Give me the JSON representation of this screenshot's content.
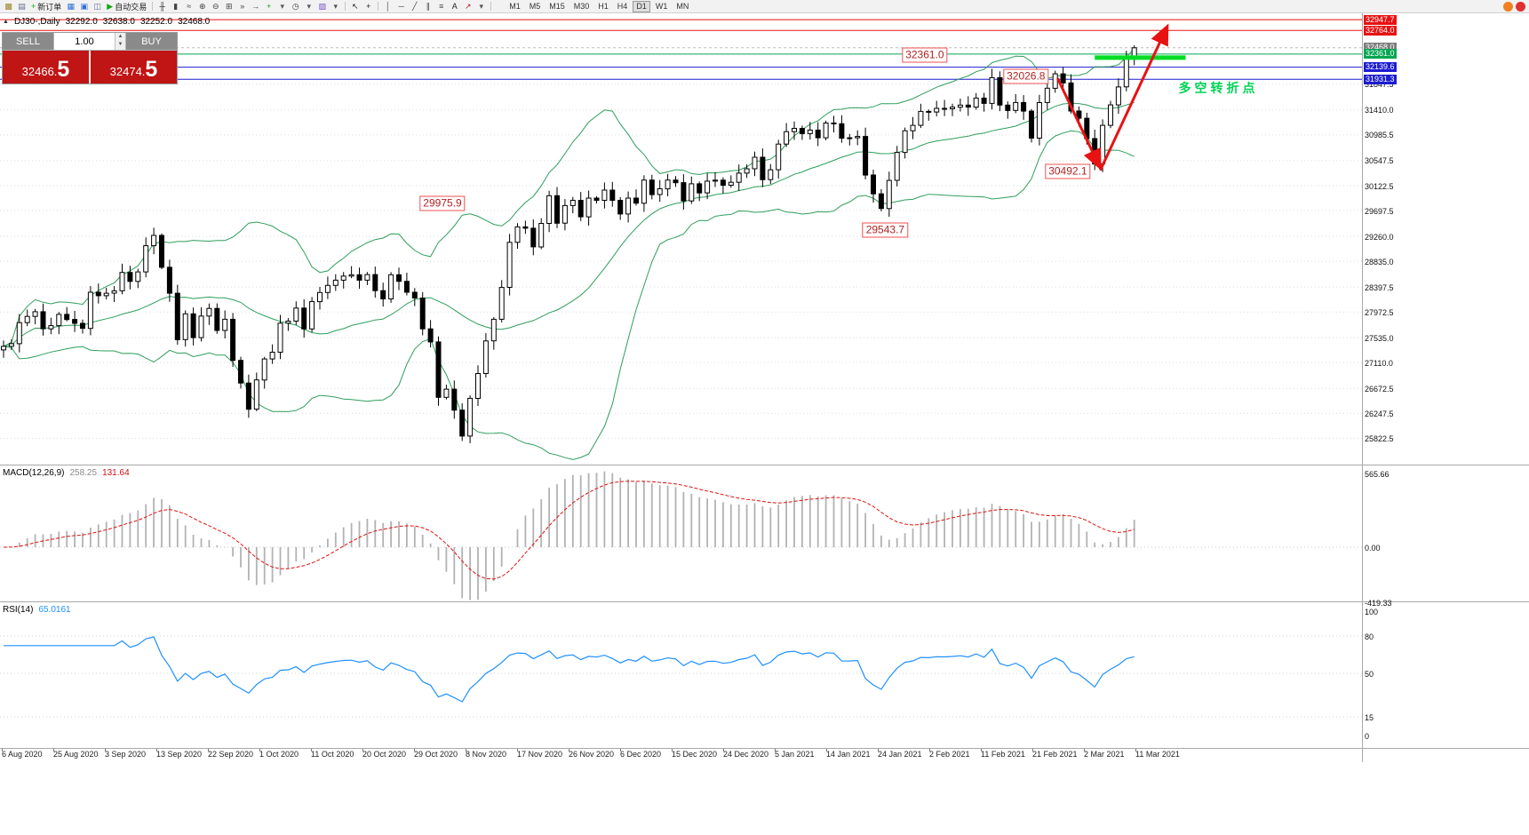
{
  "toolbar": {
    "new_order_label": "新订单",
    "autotrade_label": "自动交易",
    "timeframes": [
      "M1",
      "M5",
      "M15",
      "M30",
      "H1",
      "H4",
      "D1",
      "W1",
      "MN"
    ],
    "active_timeframe": "D1",
    "items": [
      {
        "t": "icon",
        "name": "new-chart-icon",
        "g": "▩",
        "c": "#a08428"
      },
      {
        "t": "icon",
        "name": "chart-profiles-icon",
        "g": "▤",
        "c": "#5f6f8f"
      },
      {
        "t": "btn",
        "name": "new-order-button",
        "g": "+",
        "gc": "#0faf0f",
        "label": "新订单"
      },
      {
        "t": "icon",
        "name": "market-watch-icon",
        "g": "▦",
        "c": "#2f6fd6"
      },
      {
        "t": "icon",
        "name": "data-window-icon",
        "g": "▣",
        "c": "#2f6fd6"
      },
      {
        "t": "icon",
        "name": "navigator-icon",
        "g": "◫",
        "c": "#5f6f8f"
      },
      {
        "t": "btn",
        "name": "autotrade-button",
        "g": "▶",
        "gc": "#12a912",
        "label": "自动交易"
      },
      {
        "t": "sep"
      },
      {
        "t": "icon",
        "name": "bars-mode-icon",
        "g": "╫",
        "c": "#444444"
      },
      {
        "t": "icon",
        "name": "candles-mode-icon",
        "g": "▮",
        "c": "#444444"
      },
      {
        "t": "icon",
        "name": "line-mode-icon",
        "g": "≈",
        "c": "#444444"
      },
      {
        "t": "icon",
        "name": "zoom-in-icon",
        "g": "⊕",
        "c": "#444444"
      },
      {
        "t": "icon",
        "name": "zoom-out-icon",
        "g": "⊖",
        "c": "#444444"
      },
      {
        "t": "icon",
        "name": "tile-windows-icon",
        "g": "⊞",
        "c": "#444444"
      },
      {
        "t": "icon",
        "name": "auto-scroll-icon",
        "g": "»",
        "c": "#444444"
      },
      {
        "t": "icon",
        "name": "chart-shift-icon",
        "g": "→",
        "c": "#444444"
      },
      {
        "t": "icon",
        "name": "add-indicator-icon",
        "g": "+",
        "c": "#0faf0f"
      },
      {
        "t": "icon",
        "name": "indicators-dropdown-caret",
        "g": "▾",
        "c": "#555555"
      },
      {
        "t": "icon",
        "name": "period-icon",
        "g": "◷",
        "c": "#444444"
      },
      {
        "t": "icon",
        "name": "period-dropdown-caret",
        "g": "▾",
        "c": "#555555"
      },
      {
        "t": "icon",
        "name": "template-icon",
        "g": "▨",
        "c": "#7a4fd0"
      },
      {
        "t": "icon",
        "name": "template-dropdown-caret",
        "g": "▾",
        "c": "#555555"
      },
      {
        "t": "sep"
      },
      {
        "t": "icon",
        "name": "cursor-icon",
        "g": "↖",
        "c": "#222222"
      },
      {
        "t": "icon",
        "name": "crosshair-icon",
        "g": "+",
        "c": "#222222"
      },
      {
        "t": "sep"
      },
      {
        "t": "icon",
        "name": "vertical-line-icon",
        "g": "│",
        "c": "#444444"
      },
      {
        "t": "icon",
        "name": "horizontal-line-icon",
        "g": "─",
        "c": "#444444"
      },
      {
        "t": "icon",
        "name": "trendline-icon",
        "g": "╱",
        "c": "#444444"
      },
      {
        "t": "icon",
        "name": "channel-icon",
        "g": "∥",
        "c": "#444444"
      },
      {
        "t": "icon",
        "name": "fibonacci-icon",
        "g": "≡",
        "c": "#444444"
      },
      {
        "t": "icon",
        "name": "text-label-icon",
        "g": "A",
        "c": "#222222"
      },
      {
        "t": "icon",
        "name": "arrows-tool-icon",
        "g": "↗",
        "c": "#b02020"
      },
      {
        "t": "icon",
        "name": "shapes-dropdown-caret",
        "g": "▾",
        "c": "#555555"
      },
      {
        "t": "sep"
      }
    ],
    "right_badges": [
      {
        "name": "news-badge-icon",
        "color": "#f08020"
      },
      {
        "name": "alert-badge-icon",
        "color": "#e03030"
      }
    ]
  },
  "chart_header": {
    "collapse_glyph": "▲",
    "symbol": "DJ30-,Daily",
    "open": "32292.0",
    "high": "32638.0",
    "low": "32252.0",
    "close": "32468.0"
  },
  "trade_panel": {
    "sell_label": "SELL",
    "buy_label": "BUY",
    "volume": "1.00",
    "sell_price_main": "32466.",
    "sell_price_big": "5",
    "buy_price_main": "32474.",
    "buy_price_big": "5"
  },
  "macd_panel": {
    "name": "MACD(12,26,9)",
    "value_main": "258.25",
    "value_signal": "131.64"
  },
  "rsi_panel": {
    "name": "RSI(14)",
    "value": "65.0161"
  },
  "chart_data": {
    "type": "candlestick",
    "symbol": "DJ30",
    "timeframe": "Daily",
    "y_axis_ticks": [
      31847.5,
      31410.0,
      30985.5,
      30547.5,
      30122.5,
      29697.5,
      29260.0,
      28835.0,
      28397.5,
      27972.5,
      27535.0,
      27110.0,
      26672.5,
      26247.5,
      25822.5
    ],
    "x_axis_dates": [
      "6 Aug 2020",
      "25 Aug 2020",
      "3 Sep 2020",
      "13 Sep 2020",
      "22 Sep 2020",
      "1 Oct 2020",
      "11 Oct 2020",
      "20 Oct 2020",
      "29 Oct 2020",
      "8 Nov 2020",
      "17 Nov 2020",
      "26 Nov 2020",
      "6 Dec 2020",
      "15 Dec 2020",
      "24 Dec 2020",
      "5 Jan 2021",
      "14 Jan 2021",
      "24 Jan 2021",
      "2 Feb 2021",
      "11 Feb 2021",
      "21 Feb 2021",
      "2 Mar 2021",
      "11 Mar 2021"
    ],
    "closes": [
      27387,
      27433,
      27791,
      27897,
      27977,
      27686,
      27740,
      27932,
      27845,
      27778,
      27693,
      28308,
      28249,
      28292,
      28332,
      28645,
      28492,
      28654,
      29100,
      29276,
      28733,
      28292,
      27501,
      27940,
      27535,
      27902,
      28032,
      27657,
      27848,
      27148,
      26763,
      26317,
      26815,
      27173,
      27288,
      27782,
      27817,
      28039,
      27683,
      28149,
      28304,
      28425,
      28514,
      28583,
      28606,
      28514,
      28609,
      28335,
      28195,
      28606,
      28494,
      28308,
      28210,
      27685,
      27463,
      26520,
      26659,
      26302,
      25860,
      26502,
      26925,
      27480,
      27848,
      28390,
      29157,
      29420,
      29398,
      29080,
      29480,
      29951,
      29483,
      29783,
      29872,
      29591,
      29910,
      29872,
      30046,
      29872,
      29639,
      29910,
      29824,
      30218,
      29970,
      30069,
      30218,
      30173,
      29862,
      30154,
      29999,
      30199,
      30216,
      30129,
      30179,
      30335,
      30409,
      30606,
      30224,
      30392,
      30829,
      31041,
      31097,
      31008,
      31068,
      30937,
      31188,
      31176,
      30930,
      30937,
      30960,
      30303,
      29983,
      29733,
      30212,
      30687,
      31056,
      31148,
      31386,
      31376,
      31438,
      31430,
      31458,
      31494,
      31459,
      31613,
      31522,
      31961,
      31494,
      31402,
      31537,
      31391,
      30932,
      31536,
      31780,
      32026,
      31870,
      31392,
      31270,
      30924,
      30492,
      31148,
      31496,
      31802,
      32297,
      32468
    ],
    "levels": [
      {
        "price": 32947.7,
        "tag": "32947.7",
        "color": "#e81212",
        "tag_bg": "#e81212",
        "style": "solid"
      },
      {
        "price": 32764.0,
        "tag": "32764.0",
        "color": "#e81212",
        "tag_bg": "#e81212",
        "style": "solid"
      },
      {
        "price": 32468.0,
        "tag": "32468.0",
        "color": "#bbbbbb",
        "tag_bg": "#7d7d7d",
        "style": "dashed"
      },
      {
        "price": 32361.0,
        "tag": "32361.0",
        "color": "#00a651",
        "tag_bg": "#00a651",
        "style": "solid"
      },
      {
        "price": 32139.6,
        "tag": "32139.6",
        "color": "#1b1bd0",
        "tag_bg": "#1b1bd0",
        "style": "solid"
      },
      {
        "price": 31931.3,
        "tag": "31931.3",
        "color": "#1b1bd0",
        "tag_bg": "#1b1bd0",
        "style": "solid"
      }
    ],
    "annotations": [
      {
        "text": "32361.0",
        "i": 116.5,
        "price": 32345
      },
      {
        "text": "32026.8",
        "i": 129.3,
        "price": 31985
      },
      {
        "text": "30492.1",
        "i": 134.6,
        "price": 30360
      },
      {
        "text": "29975.9",
        "i": 55.5,
        "price": 29820
      },
      {
        "text": "29543.7",
        "i": 111.5,
        "price": 29360
      }
    ],
    "note": {
      "text": "多空转折点",
      "i": 148.6,
      "price": 31790,
      "color": "#00d455"
    },
    "highlight_segment": {
      "i1": 138,
      "i2": 149.5,
      "price": 32300,
      "color": "#00dd22",
      "width": 5
    },
    "arrows": [
      {
        "i1": 133.3,
        "p1": 31950,
        "i2": 138.7,
        "p2": 30420
      },
      {
        "i1": 138.7,
        "p1": 30380,
        "i2": 147.2,
        "p2": 32840
      }
    ],
    "arrow_color": "#e81212",
    "indicators": {
      "bollinger": {
        "period": 20,
        "deviation": 2,
        "color": "#2e9e5b"
      },
      "macd": {
        "fast": 12,
        "slow": 26,
        "signal": 9,
        "axis_labels": [
          "565.66",
          "0.00",
          "-419.33"
        ],
        "axis_values": [
          565.66,
          0,
          -419.33
        ],
        "hist_color": "#b2b2b2",
        "signal_color": "#e01010"
      },
      "rsi": {
        "period": 14,
        "axis_labels": [
          "100",
          "80",
          "50",
          "15",
          "0"
        ],
        "axis_values": [
          100,
          80,
          50,
          15,
          0
        ],
        "levels": [
          80,
          50,
          15
        ],
        "color": "#1e90ff"
      }
    }
  }
}
